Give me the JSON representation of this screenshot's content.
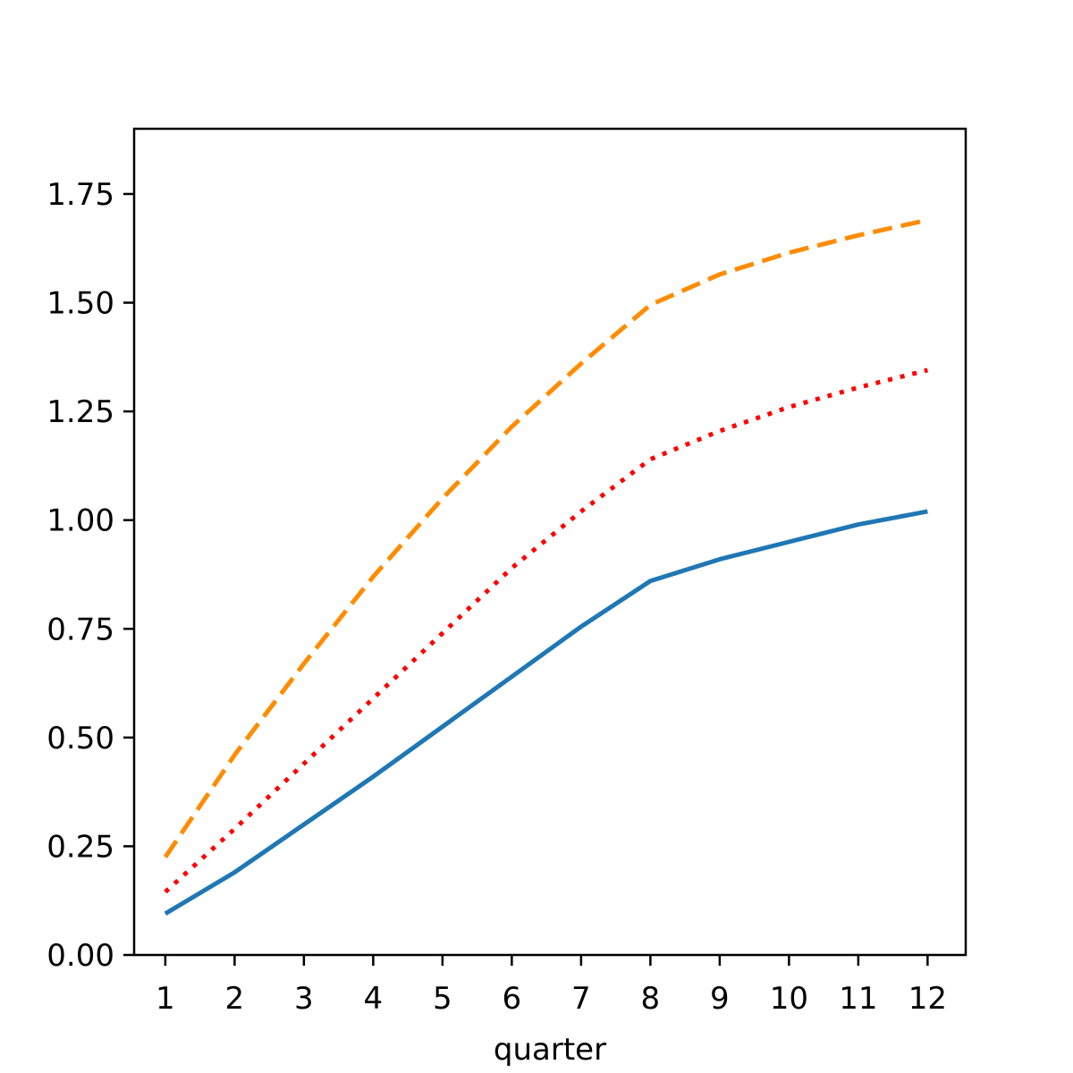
{
  "chart_data": {
    "type": "line",
    "title": "",
    "xlabel": "quarter",
    "ylabel": "",
    "x": [
      1,
      2,
      3,
      4,
      5,
      6,
      7,
      8,
      9,
      10,
      11,
      12
    ],
    "xlim": [
      0.55,
      12.55
    ],
    "ylim": [
      0,
      1.9
    ],
    "xticks": [
      1,
      2,
      3,
      4,
      5,
      6,
      7,
      8,
      9,
      10,
      11,
      12
    ],
    "yticks": [
      0,
      0.25,
      0.5,
      0.75,
      1.0,
      1.25,
      1.5,
      1.75
    ],
    "ytick_labels": [
      "0.00",
      "0.25",
      "0.50",
      "0.75",
      "1.00",
      "1.25",
      "1.50",
      "1.75"
    ],
    "grid": false,
    "legend": "none",
    "series": [
      {
        "color": "#1f77b4",
        "linestyle": "solid",
        "values": [
          0.095,
          0.19,
          0.3,
          0.41,
          0.525,
          0.64,
          0.755,
          0.86,
          0.91,
          0.95,
          0.99,
          1.02
        ]
      },
      {
        "color": "#ff0000",
        "linestyle": "dotted",
        "values": [
          0.145,
          0.29,
          0.44,
          0.59,
          0.74,
          0.89,
          1.02,
          1.14,
          1.205,
          1.26,
          1.305,
          1.345
        ]
      },
      {
        "color": "#ff8c00",
        "linestyle": "dashed",
        "values": [
          0.225,
          0.46,
          0.67,
          0.87,
          1.05,
          1.215,
          1.36,
          1.495,
          1.565,
          1.615,
          1.655,
          1.69
        ]
      }
    ]
  }
}
